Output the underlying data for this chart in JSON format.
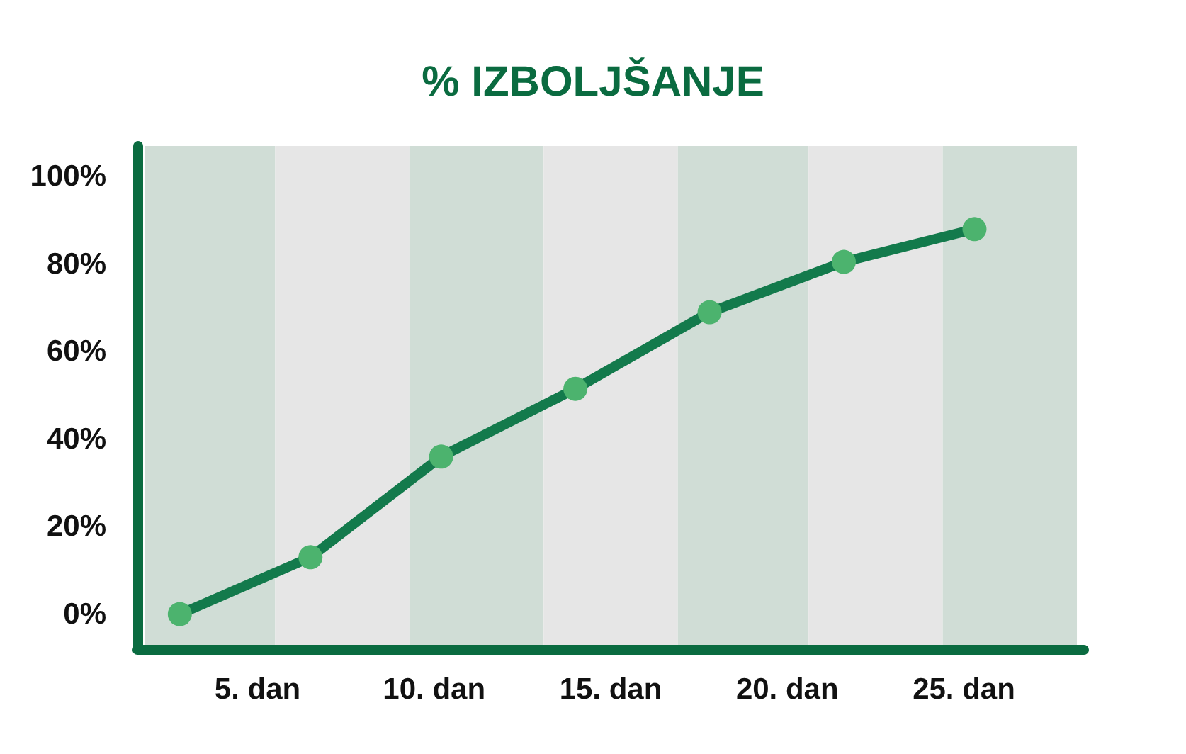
{
  "chart_data": {
    "type": "line",
    "title": "% IZBOLJŠANJE",
    "x": [
      2.8,
      6.5,
      10.2,
      14,
      17.8,
      21.6,
      25.3
    ],
    "series": [
      {
        "color": "#137a4c",
        "values": [
          0,
          13,
          36,
          51.5,
          69,
          80.5,
          88
        ]
      }
    ],
    "marker": "circle",
    "line_style": "solid",
    "grid": false,
    "xlim": [
      1.6,
      28.4
    ],
    "ylim": [
      -8,
      107
    ],
    "xticks": [
      {
        "value": 5,
        "label": "5. dan"
      },
      {
        "value": 10,
        "label": "10. dan"
      },
      {
        "value": 15,
        "label": "15. dan"
      },
      {
        "value": 20,
        "label": "20. dan"
      },
      {
        "value": 25,
        "label": "25. dan"
      }
    ],
    "yticks": [
      {
        "value": 0,
        "label": "0%"
      },
      {
        "value": 20,
        "label": "20%"
      },
      {
        "value": 40,
        "label": "40%"
      },
      {
        "value": 60,
        "label": "60%"
      },
      {
        "value": 80,
        "label": "80%"
      },
      {
        "value": 100,
        "label": "100%"
      }
    ],
    "bands": [
      {
        "axis": "x",
        "from": 1.8,
        "to": 5.5,
        "color": "#d0ddd6"
      },
      {
        "axis": "x",
        "from": 5.5,
        "to": 9.3,
        "color": "#e6e6e6"
      },
      {
        "axis": "x",
        "from": 9.3,
        "to": 13.1,
        "color": "#d0ddd6"
      },
      {
        "axis": "x",
        "from": 13.1,
        "to": 16.9,
        "color": "#e6e6e6"
      },
      {
        "axis": "x",
        "from": 16.9,
        "to": 20.6,
        "color": "#d0ddd6"
      },
      {
        "axis": "x",
        "from": 20.6,
        "to": 24.4,
        "color": "#e6e6e6"
      },
      {
        "axis": "x",
        "from": 24.4,
        "to": 28.2,
        "color": "#d0ddd6"
      }
    ]
  }
}
